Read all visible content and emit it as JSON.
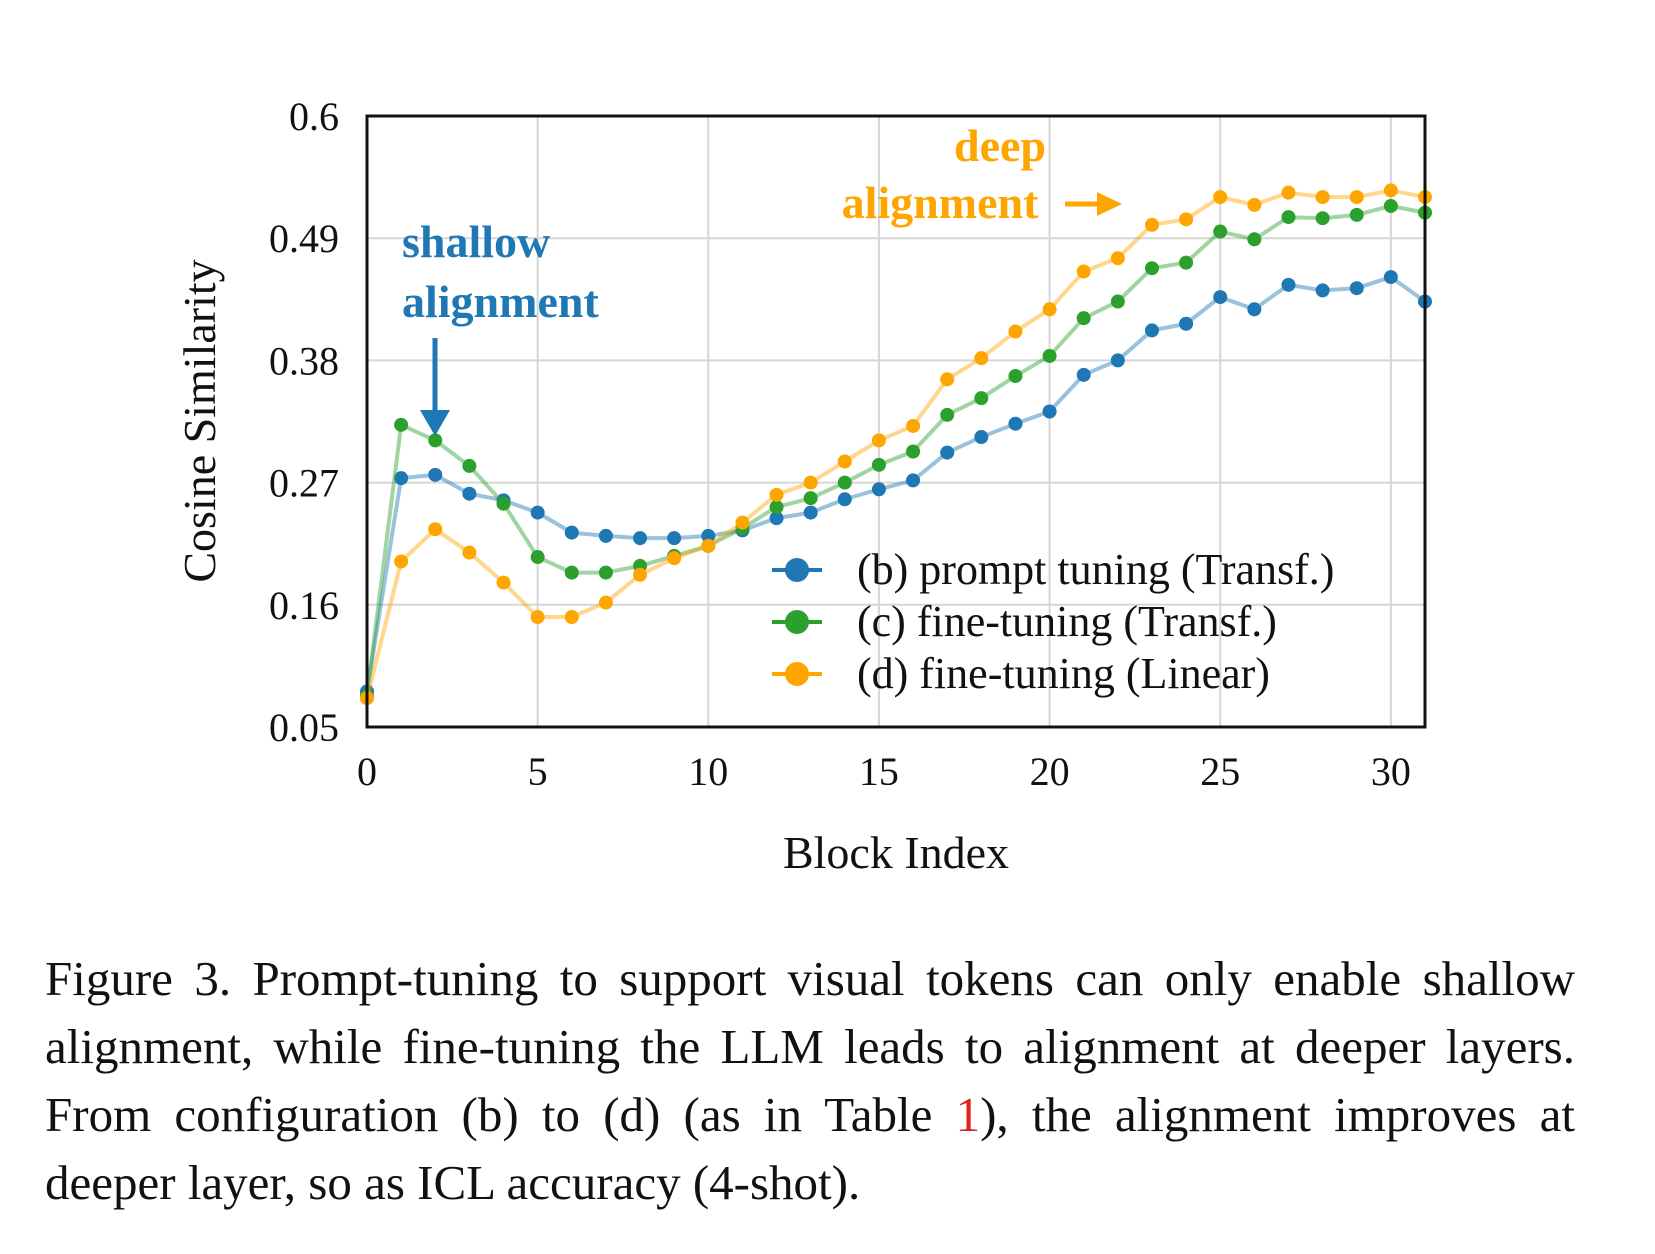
{
  "chart_data": {
    "type": "line",
    "title": "",
    "xlabel": "Block Index",
    "ylabel": "Cosine Similarity",
    "xlim": [
      0,
      31
    ],
    "ylim": [
      0.05,
      0.6
    ],
    "xticks": [
      0,
      5,
      10,
      15,
      20,
      25,
      30
    ],
    "xtick_labels": [
      "0",
      "5",
      "10",
      "15",
      "20",
      "25",
      "30"
    ],
    "yticks": [
      0.05,
      0.16,
      0.27,
      0.38,
      0.49,
      0.6
    ],
    "ytick_labels": [
      "0.05",
      "0.16",
      "0.27",
      "0.38",
      "0.49",
      "0.6"
    ],
    "grid": true,
    "legend_position": "bottom-right",
    "x": [
      0,
      1,
      2,
      3,
      4,
      5,
      6,
      7,
      8,
      9,
      10,
      11,
      12,
      13,
      14,
      15,
      16,
      17,
      18,
      19,
      20,
      21,
      22,
      23,
      24,
      25,
      26,
      27,
      28,
      29,
      30,
      31
    ],
    "series": [
      {
        "name": "(b) prompt tuning (Transf.)",
        "color": "#1f77b4",
        "values": [
          0.082,
          0.274,
          0.277,
          0.26,
          0.254,
          0.243,
          0.225,
          0.222,
          0.22,
          0.22,
          0.222,
          0.227,
          0.238,
          0.243,
          0.255,
          0.264,
          0.272,
          0.297,
          0.311,
          0.323,
          0.334,
          0.367,
          0.38,
          0.407,
          0.413,
          0.437,
          0.426,
          0.448,
          0.443,
          0.445,
          0.455,
          0.433
        ]
      },
      {
        "name": "(c) fine-tuning (Transf.)",
        "color": "#2ca02c",
        "values": [
          0.078,
          0.322,
          0.308,
          0.285,
          0.251,
          0.203,
          0.189,
          0.189,
          0.195,
          0.204,
          0.213,
          0.229,
          0.248,
          0.256,
          0.27,
          0.286,
          0.298,
          0.331,
          0.346,
          0.366,
          0.384,
          0.418,
          0.433,
          0.463,
          0.468,
          0.496,
          0.489,
          0.509,
          0.508,
          0.511,
          0.519,
          0.513
        ]
      },
      {
        "name": "(d) fine-tuning (Linear)",
        "color": "#ffa500",
        "values": [
          0.076,
          0.199,
          0.228,
          0.207,
          0.18,
          0.149,
          0.149,
          0.162,
          0.187,
          0.202,
          0.213,
          0.234,
          0.259,
          0.27,
          0.289,
          0.308,
          0.321,
          0.363,
          0.382,
          0.406,
          0.426,
          0.46,
          0.472,
          0.502,
          0.507,
          0.527,
          0.52,
          0.531,
          0.527,
          0.527,
          0.533,
          0.527
        ]
      }
    ],
    "annotations": [
      {
        "text_lines": [
          "shallow",
          "alignment"
        ],
        "color": "#1f77b4",
        "arrow": "down",
        "points_to_x": 2
      },
      {
        "text_lines": [
          "deep",
          "alignment"
        ],
        "color": "#ffa500",
        "arrow": "right"
      }
    ]
  },
  "caption": {
    "prefix": "Figure 3. Prompt-tuning to support visual tokens can only enable shallow alignment, while fine-tuning the LLM leads to alignment at deeper layers. From configuration (b) to (d) (as in Table ",
    "ref": "1",
    "suffix": "), the alignment improves at deeper layer, so as ICL accuracy (4-shot)."
  }
}
